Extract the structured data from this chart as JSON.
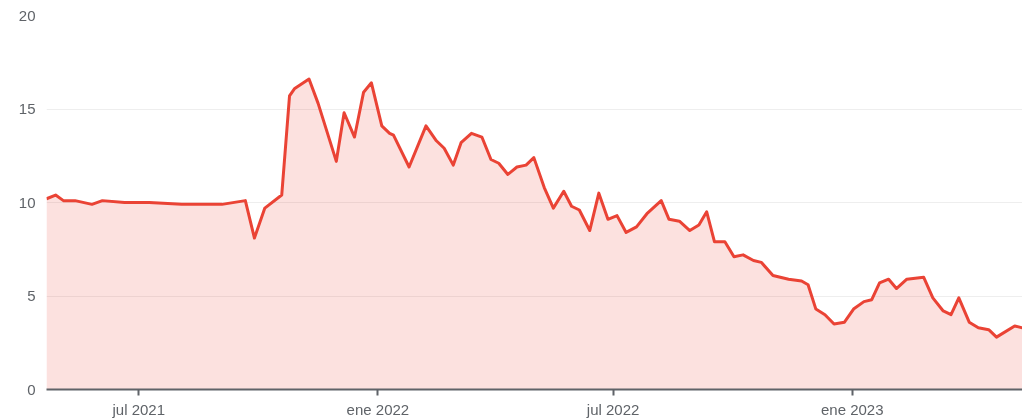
{
  "chart_data": {
    "type": "area",
    "x": [
      "2021-04-21",
      "2021-04-28",
      "2021-05-04",
      "2021-05-13",
      "2021-05-26",
      "2021-06-03",
      "2021-06-20",
      "2021-07-09",
      "2021-08-03",
      "2021-08-18",
      "2021-09-03",
      "2021-09-21",
      "2021-09-28",
      "2021-10-06",
      "2021-10-19",
      "2021-10-25",
      "2021-10-29",
      "2021-11-09",
      "2021-11-16",
      "2021-11-30",
      "2021-12-06",
      "2021-12-14",
      "2021-12-21",
      "2021-12-27",
      "2022-01-04",
      "2022-01-10",
      "2022-01-13",
      "2022-01-25",
      "2022-02-07",
      "2022-02-15",
      "2022-02-21",
      "2022-02-28",
      "2022-03-06",
      "2022-03-14",
      "2022-03-22",
      "2022-03-29",
      "2022-04-04",
      "2022-04-11",
      "2022-04-18",
      "2022-04-25",
      "2022-05-01",
      "2022-05-09",
      "2022-05-16",
      "2022-05-24",
      "2022-05-30",
      "2022-06-05",
      "2022-06-13",
      "2022-06-20",
      "2022-06-27",
      "2022-07-04",
      "2022-07-11",
      "2022-07-19",
      "2022-07-27",
      "2022-08-07",
      "2022-08-13",
      "2022-08-21",
      "2022-08-29",
      "2022-09-05",
      "2022-09-11",
      "2022-09-17",
      "2022-09-25",
      "2022-10-02",
      "2022-10-09",
      "2022-10-17",
      "2022-10-23",
      "2022-11-01",
      "2022-11-13",
      "2022-11-23",
      "2022-11-28",
      "2022-12-04",
      "2022-12-11",
      "2022-12-18",
      "2022-12-26",
      "2023-01-02",
      "2023-01-10",
      "2023-01-16",
      "2023-01-22",
      "2023-01-29",
      "2023-02-04",
      "2023-02-12",
      "2023-02-25",
      "2023-03-04",
      "2023-03-12",
      "2023-03-18",
      "2023-03-24",
      "2023-04-01",
      "2023-04-08",
      "2023-04-16",
      "2023-04-22",
      "2023-05-06",
      "2023-05-12"
    ],
    "series": [
      {
        "color": "#ea4335",
        "values": [
          10.2,
          10.4,
          10.1,
          10.1,
          9.9,
          10.1,
          10.0,
          10.0,
          9.9,
          9.9,
          9.9,
          10.1,
          8.1,
          9.7,
          10.4,
          15.7,
          16.1,
          16.6,
          15.3,
          12.2,
          14.8,
          13.5,
          15.9,
          16.4,
          14.1,
          13.7,
          13.6,
          11.9,
          14.1,
          13.3,
          12.9,
          12.0,
          13.2,
          13.7,
          13.5,
          12.3,
          12.1,
          11.5,
          11.9,
          12.0,
          12.4,
          10.8,
          9.7,
          10.6,
          9.8,
          9.6,
          8.5,
          10.5,
          9.1,
          9.3,
          8.4,
          8.7,
          9.4,
          10.1,
          9.1,
          9.0,
          8.5,
          8.8,
          9.5,
          7.9,
          7.9,
          7.1,
          7.2,
          6.9,
          6.8,
          6.1,
          5.9,
          5.8,
          5.6,
          4.3,
          4.0,
          3.5,
          3.6,
          4.3,
          4.7,
          4.8,
          5.7,
          5.9,
          5.4,
          5.9,
          6.0,
          4.9,
          4.2,
          4.0,
          4.9,
          3.6,
          3.3,
          3.2,
          2.8,
          3.4,
          3.3
        ]
      }
    ],
    "xlim": [
      "2021-04-21",
      "2023-05-12"
    ],
    "xticks": [
      {
        "value": "2021-07-01",
        "label": "jul 2021"
      },
      {
        "value": "2022-01-01",
        "label": "ene 2022"
      },
      {
        "value": "2022-07-01",
        "label": "jul 2022"
      },
      {
        "value": "2023-01-01",
        "label": "ene 2023"
      }
    ],
    "ylim": [
      0,
      20
    ],
    "yticks": [
      0,
      5,
      10,
      15,
      20
    ],
    "grid": "y"
  }
}
